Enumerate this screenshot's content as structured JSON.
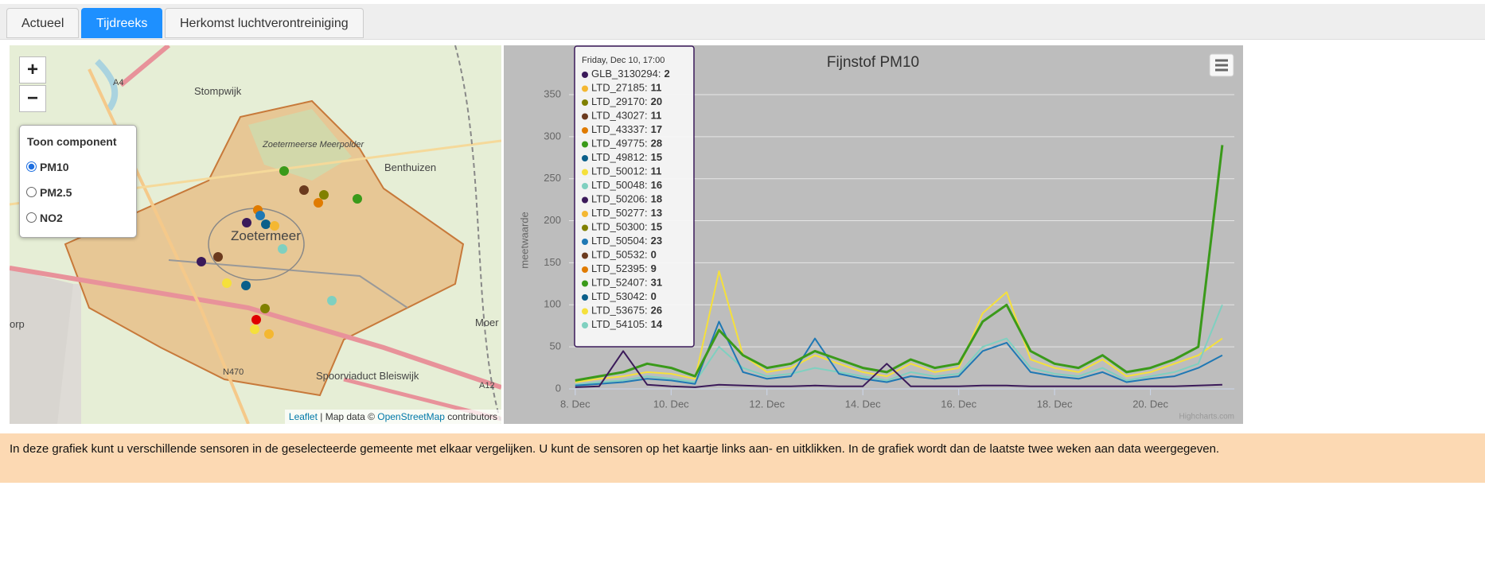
{
  "tabs": [
    "Actueel",
    "Tijdreeks",
    "Herkomst luchtverontreiniging"
  ],
  "active_tab": 1,
  "map": {
    "zoom_in": "+",
    "zoom_out": "−",
    "control": {
      "title": "Toon component",
      "options": [
        "PM10",
        "PM2.5",
        "NO2"
      ],
      "selected": 0
    },
    "labels": [
      "Stompwijk",
      "Benthuizen",
      "Zoetermeer",
      "Zoetermeerse Meerpolder",
      "Spoorviaduct Bleiswijk",
      "A4",
      "A12",
      "N470",
      "Moer",
      "orp"
    ],
    "attribution": {
      "leaflet": "Leaflet",
      "sep": " | Map data © ",
      "osm": "OpenStreetMap",
      "rest": " contributors"
    }
  },
  "chart_data": {
    "type": "line",
    "title": "Fijnstof PM10",
    "y_label": "meetwaarde",
    "credits": "Highcharts.com",
    "xlim": [
      7.87,
      21.75
    ],
    "xticks": [
      {
        "value": 8,
        "label": "8. Dec"
      },
      {
        "value": 10,
        "label": "10. Dec"
      },
      {
        "value": 12,
        "label": "12. Dec"
      },
      {
        "value": 14,
        "label": "14. Dec"
      },
      {
        "value": 16,
        "label": "16. Dec"
      },
      {
        "value": 18,
        "label": "18. Dec"
      },
      {
        "value": 20,
        "label": "20. Dec"
      }
    ],
    "ylim": [
      0,
      360
    ],
    "yticks": [
      0,
      50,
      100,
      150,
      200,
      250,
      300,
      350
    ],
    "grid": true,
    "x": [
      8,
      8.5,
      9,
      9.5,
      10,
      10.5,
      11,
      11.5,
      12,
      12.5,
      13,
      13.5,
      14,
      14.5,
      15,
      15.5,
      16,
      16.5,
      17,
      17.5,
      18,
      18.5,
      19,
      19.5,
      20,
      20.5,
      21,
      21.5
    ],
    "series": [
      {
        "color": "#f5e03b",
        "values": [
          8,
          12,
          15,
          20,
          18,
          12,
          140,
          40,
          20,
          25,
          40,
          30,
          20,
          15,
          30,
          20,
          25,
          90,
          115,
          35,
          25,
          20,
          35,
          15,
          20,
          30,
          40,
          60
        ]
      },
      {
        "color": "#7fd0c0",
        "values": [
          5,
          8,
          10,
          15,
          12,
          8,
          50,
          25,
          15,
          18,
          25,
          20,
          15,
          10,
          20,
          15,
          18,
          50,
          60,
          25,
          18,
          15,
          25,
          10,
          15,
          20,
          30,
          100
        ]
      },
      {
        "color": "#1f78b4",
        "values": [
          4,
          6,
          8,
          12,
          10,
          6,
          80,
          20,
          12,
          15,
          60,
          18,
          12,
          8,
          15,
          12,
          15,
          45,
          55,
          20,
          15,
          12,
          20,
          8,
          12,
          15,
          25,
          40
        ]
      },
      {
        "color": "#3a9a1a",
        "values": [
          10,
          15,
          20,
          30,
          25,
          15,
          70,
          40,
          25,
          30,
          45,
          35,
          25,
          20,
          35,
          25,
          30,
          80,
          100,
          45,
          30,
          25,
          40,
          20,
          25,
          35,
          50,
          290
        ]
      },
      {
        "color": "#3b1a5a",
        "values": [
          2,
          3,
          45,
          5,
          3,
          2,
          5,
          4,
          3,
          3,
          4,
          3,
          3,
          30,
          3,
          3,
          3,
          4,
          4,
          3,
          3,
          3,
          3,
          3,
          3,
          3,
          4,
          5
        ]
      }
    ],
    "tooltip": {
      "header": "Friday, Dec 10, 17:00",
      "items": [
        {
          "label": "GLB_3130294:",
          "value": 2,
          "color": "#3b1a5a"
        },
        {
          "label": "LTD_27185:",
          "value": 11,
          "color": "#f4b731"
        },
        {
          "label": "LTD_29170:",
          "value": 20,
          "color": "#808000"
        },
        {
          "label": "LTD_43027:",
          "value": 11,
          "color": "#6b3a1e"
        },
        {
          "label": "LTD_43337:",
          "value": 17,
          "color": "#e07b00"
        },
        {
          "label": "LTD_49775:",
          "value": 28,
          "color": "#3a9a1a"
        },
        {
          "label": "LTD_49812:",
          "value": 15,
          "color": "#0b5f8a"
        },
        {
          "label": "LTD_50012:",
          "value": 11,
          "color": "#f5e03b"
        },
        {
          "label": "LTD_50048:",
          "value": 16,
          "color": "#7fd0c0"
        },
        {
          "label": "LTD_50206:",
          "value": 18,
          "color": "#3b1a5a"
        },
        {
          "label": "LTD_50277:",
          "value": 13,
          "color": "#f4b731"
        },
        {
          "label": "LTD_50300:",
          "value": 15,
          "color": "#808000"
        },
        {
          "label": "LTD_50504:",
          "value": 23,
          "color": "#1f78b4"
        },
        {
          "label": "LTD_50532:",
          "value": 0,
          "color": "#6b3a1e"
        },
        {
          "label": "LTD_52395:",
          "value": 9,
          "color": "#e07b00"
        },
        {
          "label": "LTD_52407:",
          "value": 31,
          "color": "#3a9a1a"
        },
        {
          "label": "LTD_53042:",
          "value": 0,
          "color": "#0b5f8a"
        },
        {
          "label": "LTD_53675:",
          "value": 26,
          "color": "#f5e03b"
        },
        {
          "label": "LTD_54105:",
          "value": 14,
          "color": "#7fd0c0"
        }
      ]
    }
  },
  "info": "In deze grafiek kunt u verschillende sensoren in de geselecteerde gemeente met elkaar vergelijken. U kunt de sensoren op het kaartje links aan- en uitklikken. In de grafiek wordt dan de laatste twee weken aan data weergegeven."
}
